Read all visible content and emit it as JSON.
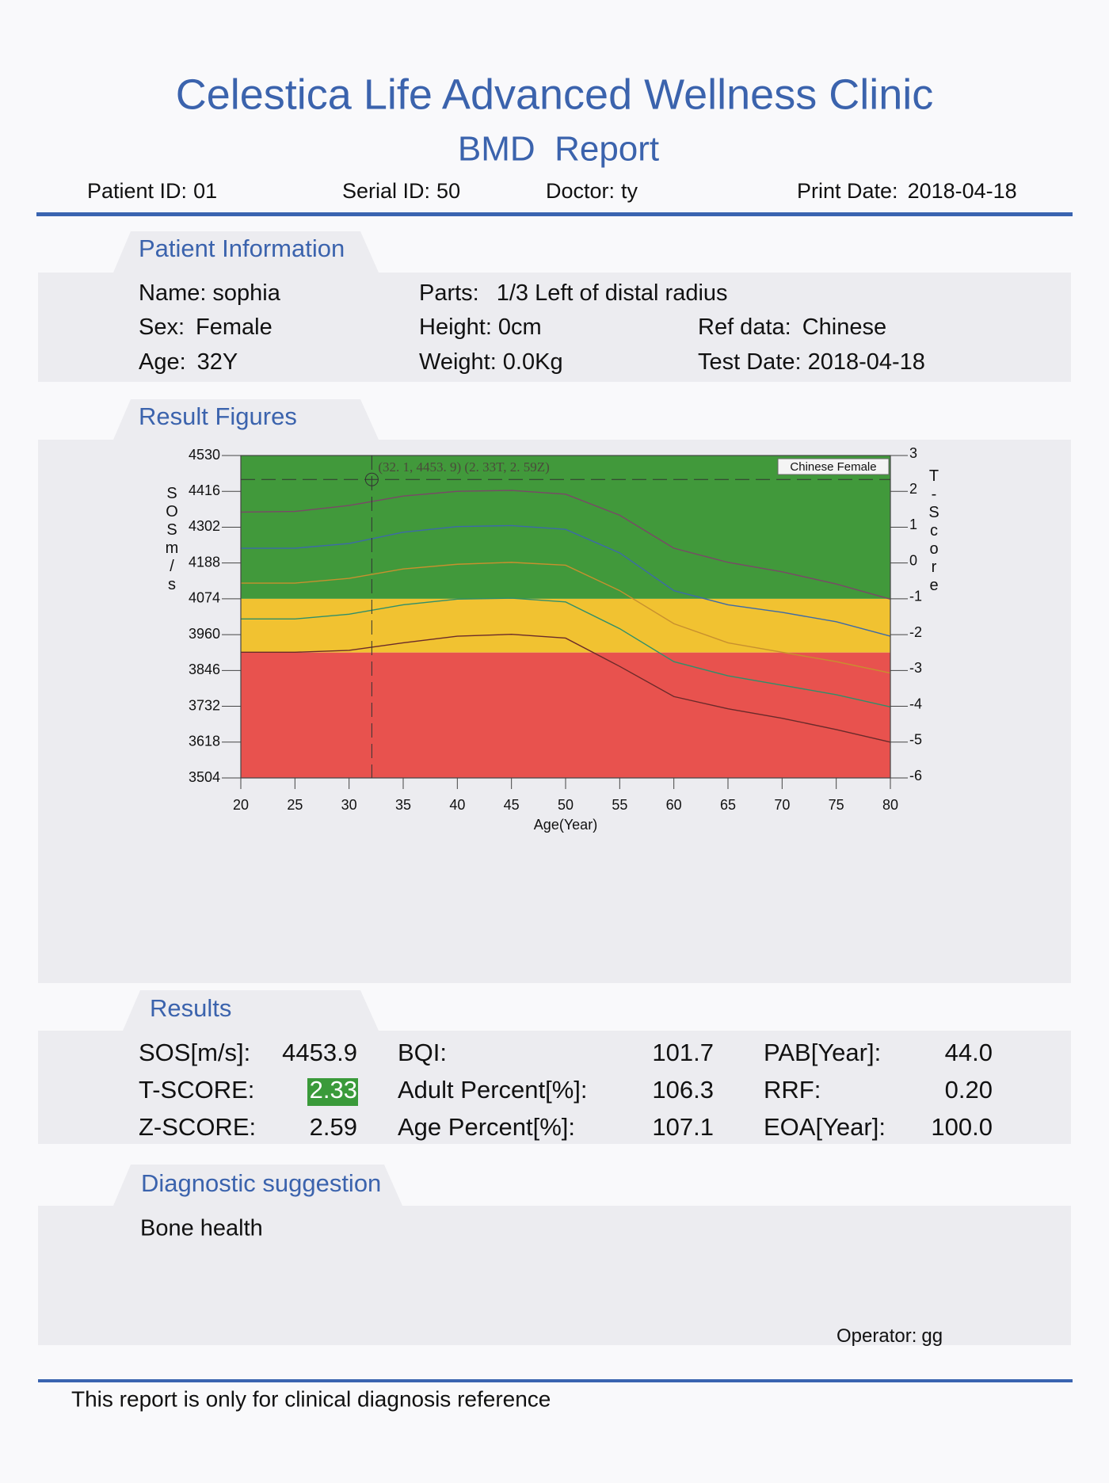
{
  "header": {
    "title": "Celestica Life Advanced Wellness Clinic",
    "subtitle": "BMD  Report",
    "fields": [
      {
        "label": "Patient ID:",
        "value": "01"
      },
      {
        "label": "Serial ID:",
        "value": "50"
      },
      {
        "label": "Doctor:",
        "value": "ty"
      },
      {
        "label": "Print Date:",
        "value": "2018-04-18"
      }
    ]
  },
  "patient_info": {
    "heading": "Patient Information",
    "fields": [
      {
        "label": "Name:",
        "value": "sophia"
      },
      {
        "label": "Parts:",
        "value": "1/3 Left of distal radius"
      },
      {
        "label": "Sex:",
        "value": "Female"
      },
      {
        "label": "Height:",
        "value": "0cm"
      },
      {
        "label": "Ref data:",
        "value": "Chinese"
      },
      {
        "label": "Age:",
        "value": "32Y"
      },
      {
        "label": "Weight:",
        "value": "0.0Kg"
      },
      {
        "label": "Test Date:",
        "value": "2018-04-18"
      }
    ]
  },
  "figures": {
    "heading": "Result Figures"
  },
  "chart_data": {
    "type": "line",
    "xlabel": "Age(Year)",
    "ylabel": "SOSm/s",
    "y2label": "T-Score",
    "legend_label": "Chinese Female",
    "legend_position": "upper right",
    "x": [
      20,
      25,
      30,
      35,
      40,
      45,
      50,
      55,
      60,
      65,
      70,
      75,
      80
    ],
    "series": [
      {
        "color": "#7a4868",
        "values": [
          4350,
          4352,
          4371,
          4401,
          4416,
          4419,
          4407,
          4340,
          4235,
          4190,
          4160,
          4121,
          4073
        ]
      },
      {
        "color": "#3d6aa8",
        "values": [
          4235,
          4235,
          4250,
          4286,
          4304,
          4307,
          4295,
          4220,
          4100,
          4055,
          4031,
          4001,
          3955
        ]
      },
      {
        "color": "#c8902e",
        "values": [
          4124,
          4124,
          4139,
          4169,
          4184,
          4190,
          4181,
          4100,
          3995,
          3934,
          3904,
          3874,
          3838
        ]
      },
      {
        "color": "#2f8f6a",
        "values": [
          4010,
          4010,
          4025,
          4055,
          4073,
          4076,
          4064,
          3979,
          3874,
          3829,
          3799,
          3769,
          3730
        ]
      },
      {
        "color": "#6a2a2a",
        "values": [
          3904,
          3904,
          3910,
          3934,
          3955,
          3961,
          3949,
          3859,
          3763,
          3724,
          3694,
          3658,
          3618
        ]
      }
    ],
    "bands": [
      {
        "from": -1,
        "to": 3,
        "color": "#41993b"
      },
      {
        "from": -2.5,
        "to": -1,
        "color": "#f1c231"
      },
      {
        "from": -6,
        "to": -2.5,
        "color": "#e8524e"
      }
    ],
    "marker": {
      "x": 32.1,
      "y": 4453.9
    },
    "annotation": "(32. 1, 4453. 9) (2. 33T, 2. 59Z)",
    "xlim": [
      20,
      80
    ],
    "xticks": [
      20,
      25,
      30,
      35,
      40,
      45,
      50,
      55,
      60,
      65,
      70,
      75,
      80
    ],
    "ylim": [
      3504,
      4530
    ],
    "yticks": [
      3504,
      3618,
      3732,
      3846,
      3960,
      4074,
      4188,
      4302,
      4416,
      4530
    ],
    "y2lim": [
      -6,
      3
    ],
    "y2ticks": [
      -6,
      -5,
      -4,
      -3,
      -2,
      -1,
      0,
      1,
      2,
      3
    ]
  },
  "results": {
    "heading": "Results",
    "rows": [
      [
        {
          "label": "SOS[m/s]:",
          "value": "4453.9"
        },
        {
          "label": "BQI:",
          "value": "101.7"
        },
        {
          "label": "PAB[Year]:",
          "value": "44.0"
        }
      ],
      [
        {
          "label": "T-SCORE:",
          "value": "2.33"
        },
        {
          "label": "Adult Percent[%]:",
          "value": "106.3"
        },
        {
          "label": "RRF:",
          "value": "0.20"
        }
      ],
      [
        {
          "label": "Z-SCORE:",
          "value": "2.59"
        },
        {
          "label": "Age Percent[%]:",
          "value": "107.1"
        },
        {
          "label": "EOA[Year]:",
          "value": "100.0"
        }
      ]
    ]
  },
  "diagnostic": {
    "heading": "Diagnostic suggestion",
    "text": "Bone health",
    "operator": {
      "label": "Operator:",
      "value": "gg"
    }
  },
  "footer": {
    "text": "This report is only for clinical diagnosis reference"
  }
}
